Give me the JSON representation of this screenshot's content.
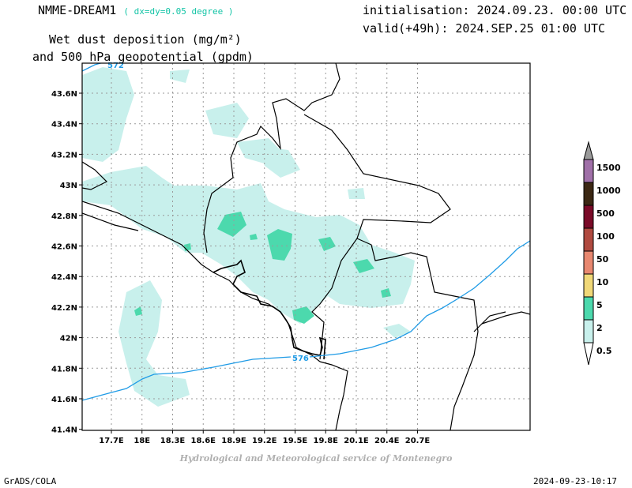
{
  "header": {
    "model": "NMME-DREAM1",
    "resolution": "( dx=dy=0.05 degree )",
    "init_line": "initialisation: 2024.09.23. 00:00 UTC",
    "valid_line": "valid(+49h): 2024.SEP.25 01:00 UTC",
    "title_line1": "Wet dust deposition (mg/m²)",
    "title_line2": "and 500 hPa geopotential (gpdm)"
  },
  "footer": {
    "credit": "Hydrological and Meteorological service of Montenegro",
    "software": "GrADS/COLA",
    "timestamp": "2024-09-23-10:17"
  },
  "map": {
    "lon_ticks": [
      "17.7E",
      "18E",
      "18.3E",
      "18.6E",
      "18.9E",
      "19.2E",
      "19.5E",
      "19.8E",
      "20.1E",
      "20.4E",
      "20.7E"
    ],
    "lat_ticks": [
      "43.6N",
      "43.4N",
      "43.2N",
      "43N",
      "42.8N",
      "42.6N",
      "42.4N",
      "42.2N",
      "42N",
      "41.8N",
      "41.6N",
      "41.4N"
    ],
    "contours": [
      {
        "label": "572",
        "color": "#1f9be6"
      },
      {
        "label": "576",
        "color": "#1f9be6"
      }
    ],
    "deposition_colors": {
      "light": "#c8f0ec",
      "medium": "#4cd9ad"
    }
  },
  "legend": {
    "labels": [
      "1500",
      "1000",
      "500",
      "100",
      "50",
      "10",
      "5",
      "2",
      "0.5"
    ],
    "colors": [
      "#a070a8",
      "#3c2814",
      "#7a0a28",
      "#b04a40",
      "#e88870",
      "#f0d878",
      "#4cd9ad",
      "#c8f0ec"
    ],
    "top_arrow_color": "#9a9a9a"
  }
}
